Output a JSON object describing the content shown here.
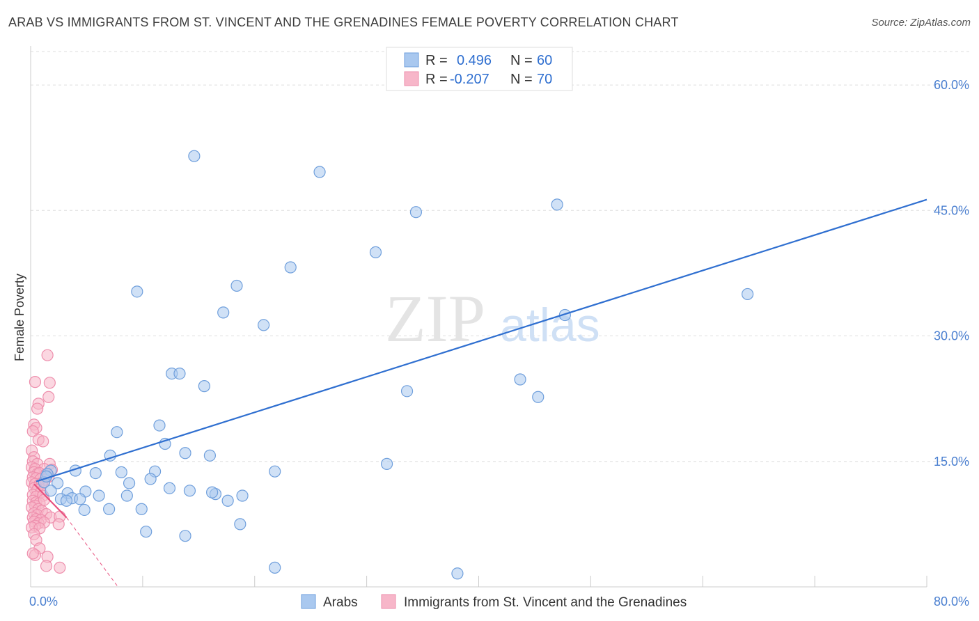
{
  "header": {
    "title": "ARAB VS IMMIGRANTS FROM ST. VINCENT AND THE GRENADINES FEMALE POVERTY CORRELATION CHART",
    "source": "Source: ZipAtlas.com"
  },
  "watermark": {
    "zip": "ZIP",
    "atlas": "atlas"
  },
  "colors": {
    "blue_fill": "#a9c8ef",
    "blue_stroke": "#6f9fdc",
    "blue_line": "#2f6fd0",
    "pink_fill": "#f7b6c9",
    "pink_stroke": "#ee8fad",
    "pink_line": "#e8517f",
    "tick_text": "#4a7fd0",
    "grid": "#dddddd"
  },
  "chart_data": {
    "type": "scatter",
    "ylabel": "Female Poverty",
    "x_tick_labels": [
      "0.0%",
      "80.0%"
    ],
    "y_tick_labels": [
      "15.0%",
      "30.0%",
      "45.0%",
      "60.0%"
    ],
    "y_ticks": [
      15,
      30,
      45,
      60
    ],
    "xlim": [
      0,
      80
    ],
    "ylim": [
      0,
      64
    ],
    "grid": true,
    "legend": {
      "position": "top-center",
      "entries": [
        {
          "r_label": "R =",
          "r_value": "0.496",
          "n_label": "N =",
          "n_value": "60"
        },
        {
          "r_label": "R =",
          "r_value": "-0.207",
          "n_label": "N =",
          "n_value": "70"
        }
      ]
    },
    "bottom_legend": [
      "Arabs",
      "Immigrants from St. Vincent and the Grenadines"
    ],
    "series": [
      {
        "name": "Arabs",
        "trend": {
          "x": [
            0.5,
            80
          ],
          "y": [
            12.6,
            46.3
          ]
        },
        "points": [
          [
            14.6,
            51.5
          ],
          [
            25.8,
            49.6
          ],
          [
            34.4,
            44.8
          ],
          [
            47.0,
            45.7
          ],
          [
            30.8,
            40.0
          ],
          [
            23.2,
            38.2
          ],
          [
            18.4,
            36.0
          ],
          [
            9.5,
            35.3
          ],
          [
            64.0,
            35.0
          ],
          [
            17.2,
            32.8
          ],
          [
            20.8,
            31.3
          ],
          [
            47.7,
            32.5
          ],
          [
            12.6,
            25.5
          ],
          [
            13.3,
            25.5
          ],
          [
            15.5,
            24.0
          ],
          [
            33.6,
            23.4
          ],
          [
            43.7,
            24.8
          ],
          [
            45.3,
            22.7
          ],
          [
            11.5,
            19.3
          ],
          [
            7.7,
            18.5
          ],
          [
            12.0,
            17.1
          ],
          [
            7.1,
            15.7
          ],
          [
            13.8,
            16.0
          ],
          [
            16.0,
            15.7
          ],
          [
            31.8,
            14.7
          ],
          [
            21.8,
            13.8
          ],
          [
            11.1,
            13.8
          ],
          [
            8.1,
            13.7
          ],
          [
            5.8,
            13.6
          ],
          [
            4.0,
            13.9
          ],
          [
            1.8,
            13.9
          ],
          [
            1.5,
            13.5
          ],
          [
            1.2,
            12.5
          ],
          [
            1.4,
            13.2
          ],
          [
            2.4,
            12.4
          ],
          [
            10.7,
            12.9
          ],
          [
            8.8,
            12.4
          ],
          [
            12.4,
            11.8
          ],
          [
            1.8,
            11.5
          ],
          [
            3.3,
            11.2
          ],
          [
            4.9,
            11.4
          ],
          [
            14.2,
            11.5
          ],
          [
            16.5,
            11.1
          ],
          [
            16.2,
            11.3
          ],
          [
            6.1,
            10.9
          ],
          [
            8.6,
            10.9
          ],
          [
            18.9,
            10.9
          ],
          [
            2.7,
            10.5
          ],
          [
            3.7,
            10.6
          ],
          [
            4.4,
            10.5
          ],
          [
            17.6,
            10.3
          ],
          [
            3.2,
            10.3
          ],
          [
            9.9,
            9.3
          ],
          [
            7.0,
            9.3
          ],
          [
            4.8,
            9.2
          ],
          [
            18.7,
            7.5
          ],
          [
            10.3,
            6.6
          ],
          [
            13.8,
            6.1
          ],
          [
            21.8,
            2.3
          ],
          [
            38.1,
            1.6
          ]
        ]
      },
      {
        "name": "Immigrants from St. Vincent and the Grenadines",
        "trend": {
          "x": [
            0.3,
            3.2
          ],
          "y": [
            12.3,
            8.3
          ]
        },
        "trend_dashed": {
          "x": [
            3.2,
            7.8
          ],
          "y": [
            8.3,
            0.0
          ]
        },
        "points": [
          [
            1.5,
            27.7
          ],
          [
            0.4,
            24.5
          ],
          [
            1.7,
            24.4
          ],
          [
            1.6,
            22.7
          ],
          [
            0.7,
            21.9
          ],
          [
            0.6,
            21.3
          ],
          [
            0.3,
            19.4
          ],
          [
            0.5,
            19.0
          ],
          [
            0.2,
            18.6
          ],
          [
            0.7,
            17.6
          ],
          [
            1.1,
            17.4
          ],
          [
            0.1,
            16.3
          ],
          [
            0.3,
            15.5
          ],
          [
            0.2,
            15.0
          ],
          [
            0.6,
            14.7
          ],
          [
            1.7,
            14.7
          ],
          [
            0.1,
            14.3
          ],
          [
            0.4,
            14.1
          ],
          [
            1.2,
            14.1
          ],
          [
            1.9,
            14.0
          ],
          [
            0.3,
            13.7
          ],
          [
            0.6,
            13.5
          ],
          [
            0.8,
            13.6
          ],
          [
            1.4,
            13.5
          ],
          [
            0.2,
            13.1
          ],
          [
            0.5,
            13.0
          ],
          [
            0.9,
            12.9
          ],
          [
            1.3,
            12.8
          ],
          [
            1.6,
            13.2
          ],
          [
            0.1,
            12.5
          ],
          [
            0.4,
            12.3
          ],
          [
            0.7,
            12.1
          ],
          [
            1.0,
            12.4
          ],
          [
            0.3,
            11.8
          ],
          [
            0.6,
            11.6
          ],
          [
            0.9,
            11.3
          ],
          [
            0.2,
            11.0
          ],
          [
            0.5,
            10.8
          ],
          [
            1.1,
            10.9
          ],
          [
            0.2,
            10.3
          ],
          [
            0.5,
            10.1
          ],
          [
            0.8,
            10.0
          ],
          [
            1.2,
            10.4
          ],
          [
            0.4,
            9.7
          ],
          [
            0.1,
            9.5
          ],
          [
            0.7,
            9.3
          ],
          [
            1.0,
            9.1
          ],
          [
            0.3,
            8.8
          ],
          [
            0.6,
            8.6
          ],
          [
            1.4,
            8.7
          ],
          [
            0.2,
            8.3
          ],
          [
            0.5,
            8.1
          ],
          [
            0.9,
            8.0
          ],
          [
            1.8,
            8.3
          ],
          [
            0.3,
            7.8
          ],
          [
            0.7,
            7.6
          ],
          [
            1.2,
            7.7
          ],
          [
            0.4,
            7.3
          ],
          [
            0.1,
            7.1
          ],
          [
            0.8,
            7.0
          ],
          [
            2.6,
            8.4
          ],
          [
            2.5,
            7.5
          ],
          [
            0.3,
            6.3
          ],
          [
            0.5,
            5.6
          ],
          [
            0.8,
            4.6
          ],
          [
            1.5,
            3.6
          ],
          [
            0.4,
            3.8
          ],
          [
            0.2,
            4.0
          ],
          [
            1.4,
            2.5
          ],
          [
            2.6,
            2.3
          ]
        ]
      }
    ]
  }
}
